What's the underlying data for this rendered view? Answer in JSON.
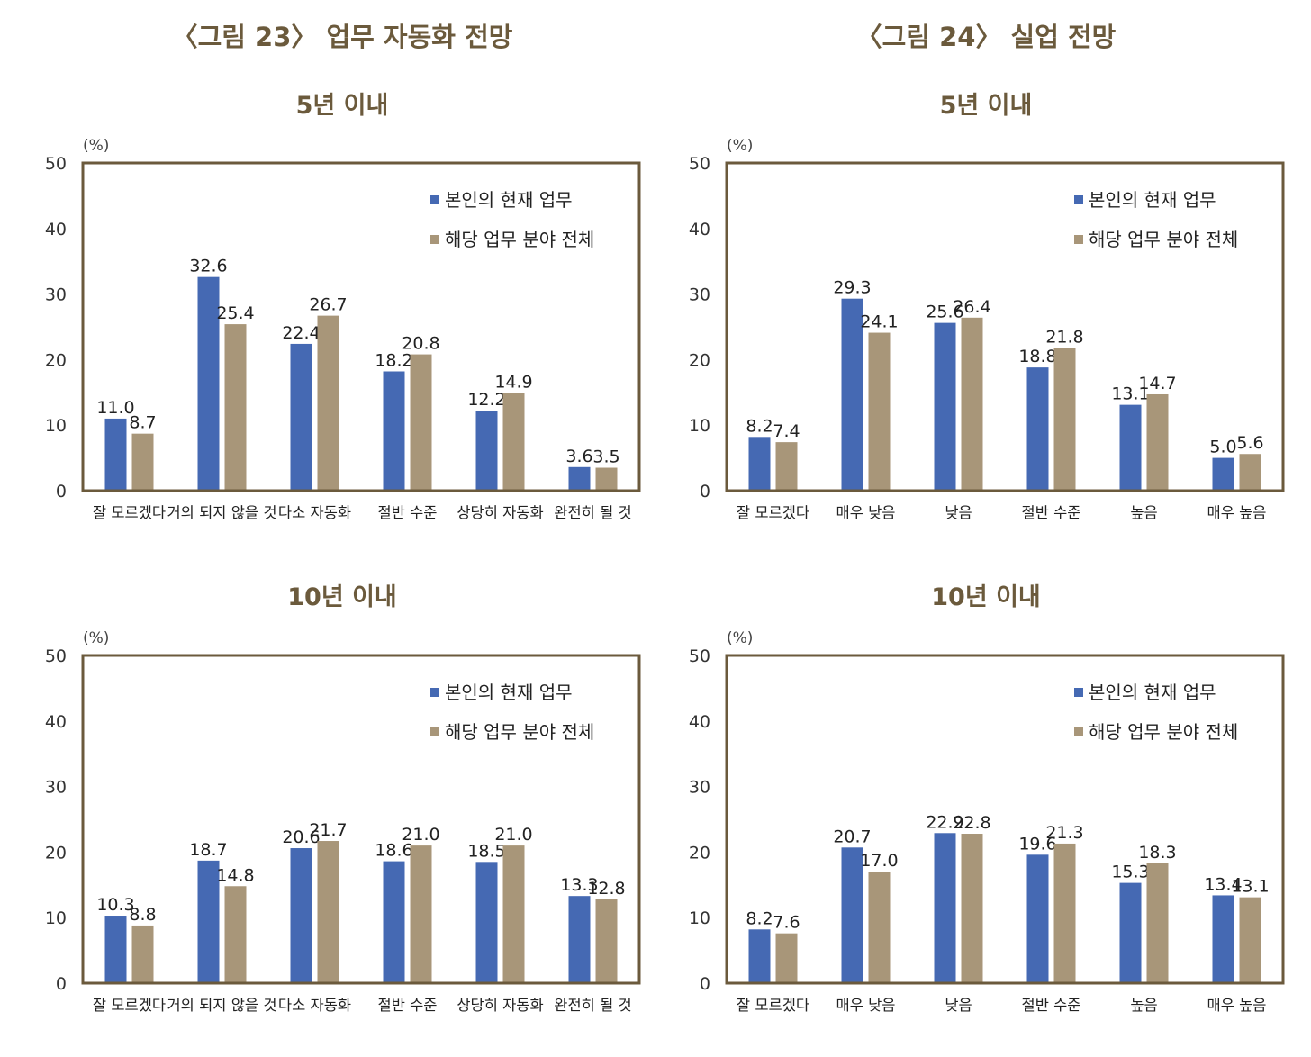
{
  "figures": {
    "fig23_title": "〈그림 23〉 업무 자동화 전망",
    "fig24_title": "〈그림 24〉 실업 전망"
  },
  "colors": {
    "series1": "#4569b3",
    "series2": "#a89679",
    "frame": "#6b5a3c",
    "title": "#6b5a3c"
  },
  "chart_data": [
    {
      "id": "c23_5y",
      "type": "bar",
      "figure": "〈그림 23〉 업무 자동화 전망",
      "title": "5년 이내",
      "ylabel": "(%)",
      "ylim": [
        0,
        50
      ],
      "yticks": [
        0,
        10,
        20,
        30,
        40,
        50
      ],
      "categories": [
        "잘 모르겠다",
        "거의 되지 않을 것",
        "다소 자동화",
        "절반 수준",
        "상당히 자동화",
        "완전히 될 것"
      ],
      "series": [
        {
          "name": "본인의 현재 업무",
          "values": [
            11.0,
            32.6,
            22.4,
            18.2,
            12.2,
            3.6
          ]
        },
        {
          "name": "해당 업무 분야 전체",
          "values": [
            8.7,
            25.4,
            26.7,
            20.8,
            14.9,
            3.5
          ]
        }
      ],
      "legend": "top-right"
    },
    {
      "id": "c24_5y",
      "type": "bar",
      "figure": "〈그림 24〉 실업 전망",
      "title": "5년 이내",
      "ylabel": "(%)",
      "ylim": [
        0,
        50
      ],
      "yticks": [
        0,
        10,
        20,
        30,
        40,
        50
      ],
      "categories": [
        "잘 모르겠다",
        "매우 낮음",
        "낮음",
        "절반 수준",
        "높음",
        "매우 높음"
      ],
      "series": [
        {
          "name": "본인의 현재 업무",
          "values": [
            8.2,
            29.3,
            25.6,
            18.8,
            13.1,
            5.0
          ]
        },
        {
          "name": "해당 업무 분야 전체",
          "values": [
            7.4,
            24.1,
            26.4,
            21.8,
            14.7,
            5.6
          ]
        }
      ],
      "legend": "top-right"
    },
    {
      "id": "c23_10y",
      "type": "bar",
      "figure": "〈그림 23〉 업무 자동화 전망",
      "title": "10년 이내",
      "ylabel": "(%)",
      "ylim": [
        0,
        50
      ],
      "yticks": [
        0,
        10,
        20,
        30,
        40,
        50
      ],
      "categories": [
        "잘 모르겠다",
        "거의 되지 않을 것",
        "다소 자동화",
        "절반 수준",
        "상당히 자동화",
        "완전히 될 것"
      ],
      "series": [
        {
          "name": "본인의 현재 업무",
          "values": [
            10.3,
            18.7,
            20.6,
            18.6,
            18.5,
            13.3
          ]
        },
        {
          "name": "해당 업무 분야 전체",
          "values": [
            8.8,
            14.8,
            21.7,
            21.0,
            21.0,
            12.8
          ]
        }
      ],
      "legend": "top-right"
    },
    {
      "id": "c24_10y",
      "type": "bar",
      "figure": "〈그림 24〉 실업 전망",
      "title": "10년 이내",
      "ylabel": "(%)",
      "ylim": [
        0,
        50
      ],
      "yticks": [
        0,
        10,
        20,
        30,
        40,
        50
      ],
      "categories": [
        "잘 모르겠다",
        "매우 낮음",
        "낮음",
        "절반 수준",
        "높음",
        "매우 높음"
      ],
      "series": [
        {
          "name": "본인의 현재 업무",
          "values": [
            8.2,
            20.7,
            22.9,
            19.6,
            15.3,
            13.4
          ]
        },
        {
          "name": "해당 업무 분야 전체",
          "values": [
            7.6,
            17.0,
            22.8,
            21.3,
            18.3,
            13.1
          ]
        }
      ],
      "legend": "top-right"
    }
  ]
}
